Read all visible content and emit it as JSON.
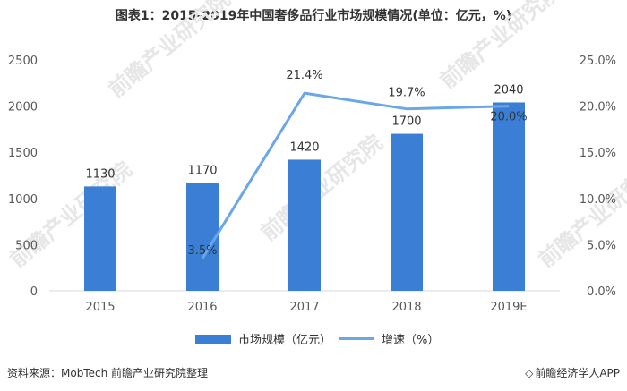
{
  "title": "图表1：2015-2019年中国奢侈品行业市场规模情况(单位：亿元，%)",
  "source": "资料来源：MobTech 前瞻产业研究院整理",
  "brand": "前瞻经济学人APP",
  "watermark": "前瞻产业研究院",
  "colors": {
    "bar": "#3a7fd5",
    "line": "#6aa6e8",
    "axis_text": "#595959"
  },
  "chart_data": {
    "type": "bar",
    "categories": [
      "2015",
      "2016",
      "2017",
      "2018",
      "2019E"
    ],
    "series": [
      {
        "name": "市场规模（亿元）",
        "type": "bar",
        "axis": "left",
        "values": [
          1130,
          1170,
          1420,
          1700,
          2040
        ],
        "labels": [
          "1130",
          "1170",
          "1420",
          "1700",
          "2040"
        ]
      },
      {
        "name": "增速（%）",
        "type": "line",
        "axis": "right",
        "values": [
          null,
          3.5,
          21.4,
          19.7,
          20.0
        ],
        "labels": [
          null,
          "3.5%",
          "21.4%",
          "19.7%",
          "20.0%"
        ]
      }
    ],
    "y_left": {
      "min": 0,
      "max": 2500,
      "ticks": [
        "0",
        "500",
        "1000",
        "1500",
        "2000",
        "2500"
      ]
    },
    "y_right": {
      "min": 0,
      "max": 25,
      "ticks": [
        "0.0%",
        "5.0%",
        "10.0%",
        "15.0%",
        "20.0%",
        "25.0%"
      ]
    },
    "legend": [
      "市场规模（亿元）",
      "增速（%）"
    ],
    "legend_position": "bottom",
    "grid": false
  }
}
